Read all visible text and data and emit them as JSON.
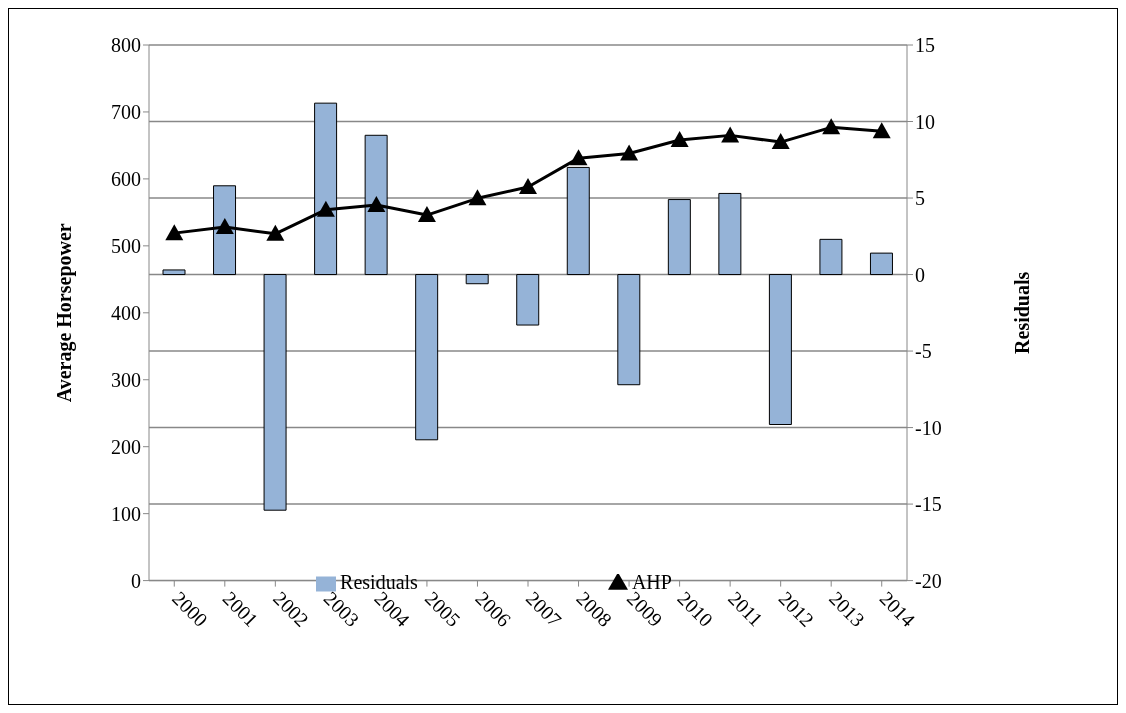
{
  "chart_data": {
    "type": "bar",
    "categories": [
      "2000",
      "2001",
      "2002",
      "2003",
      "2004",
      "2005",
      "2006",
      "2007",
      "2008",
      "2009",
      "2010",
      "2011",
      "2012",
      "2013",
      "2014"
    ],
    "ylabel": "Average  Horsepower",
    "y2label": "Residuals",
    "ylim": [
      0,
      800
    ],
    "yticks": [
      0,
      100,
      200,
      300,
      400,
      500,
      600,
      700,
      800
    ],
    "y2lim": [
      -20,
      15
    ],
    "y2ticks": [
      -20,
      -15,
      -10,
      -5,
      0,
      5,
      10,
      15
    ],
    "grid": "y",
    "legend": "bottom",
    "series": [
      {
        "name": "Residuals",
        "axis": "y2",
        "color": "#95b3d7",
        "values": [
          0.3,
          5.8,
          -15.4,
          11.2,
          9.1,
          -10.8,
          -0.6,
          -3.3,
          7.0,
          -7.2,
          4.9,
          5.3,
          -9.8,
          2.3,
          1.4
        ]
      },
      {
        "name": "AHP",
        "type": "line",
        "axis": "y",
        "color": "#000000",
        "marker": "triangle",
        "values": [
          519,
          528,
          518,
          554,
          561,
          546,
          571,
          588,
          631,
          638,
          658,
          665,
          655,
          677,
          671
        ]
      }
    ]
  }
}
